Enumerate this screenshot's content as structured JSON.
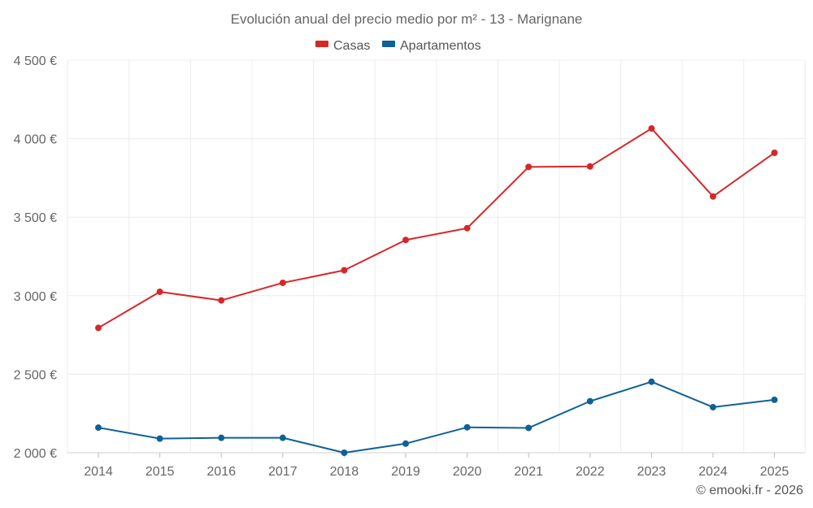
{
  "chart_data": {
    "type": "line",
    "title": "Evolución anual del precio medio por m² - 13 - Marignane",
    "categories": [
      "2014",
      "2015",
      "2016",
      "2017",
      "2018",
      "2019",
      "2020",
      "2021",
      "2022",
      "2023",
      "2024",
      "2025"
    ],
    "series": [
      {
        "name": "Casas",
        "color": "#d62728",
        "values": [
          2795,
          3025,
          2970,
          3082,
          3162,
          3355,
          3430,
          3820,
          3823,
          4065,
          3632,
          3910
        ]
      },
      {
        "name": "Apartamentos",
        "color": "#0f6196",
        "values": [
          2160,
          2090,
          2095,
          2095,
          2000,
          2058,
          2162,
          2158,
          2328,
          2452,
          2290,
          2337
        ]
      }
    ],
    "ylim": [
      2000,
      4500
    ],
    "yticks": [
      2000,
      2500,
      3000,
      3500,
      4000,
      4500
    ],
    "ytick_labels": [
      "2 000 €",
      "2 500 €",
      "3 000 €",
      "3 500 €",
      "4 000 €",
      "4 500 €"
    ],
    "xlabel": "",
    "ylabel": "",
    "grid": true,
    "legend_position": "top-center"
  },
  "watermark": "© emooki.fr - 2026"
}
